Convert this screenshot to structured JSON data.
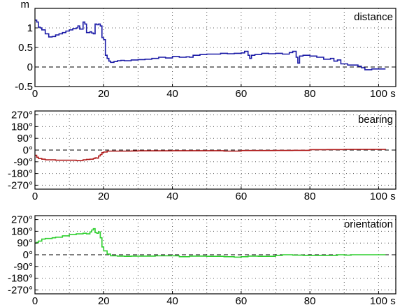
{
  "chart_data": [
    {
      "type": "line",
      "title": "distance",
      "ylabel": "m",
      "xlabel": "s",
      "xlim": [
        0,
        105
      ],
      "ylim": [
        -0.5,
        1.5
      ],
      "xticks": [
        0,
        20,
        40,
        60,
        80,
        100
      ],
      "xtick_labels": [
        "0",
        "20",
        "40",
        "60",
        "80",
        "100"
      ],
      "yticks": [
        -0.5,
        0,
        0.5,
        1
      ],
      "ytick_labels": [
        "-0.5",
        "0",
        "0.5",
        "1"
      ],
      "grid": true,
      "zero_line": "dashed",
      "color": "#1a1aa6",
      "series": [
        {
          "x": [
            0,
            0.5,
            1,
            1.5,
            2,
            3,
            4,
            5,
            6,
            7,
            8,
            9,
            10,
            11,
            12,
            12.5,
            13,
            14,
            14.5,
            15,
            16,
            16.5,
            17,
            17.5,
            18,
            18.5,
            19,
            19.5,
            20,
            20.5,
            21,
            21.5,
            22,
            23,
            24,
            25,
            26,
            28,
            30,
            32,
            34,
            36,
            38,
            40,
            42,
            44,
            45,
            46,
            48,
            50,
            52,
            54,
            56,
            58,
            60,
            61,
            62,
            62.5,
            63,
            64,
            66,
            68,
            70,
            72,
            74,
            75,
            76,
            76.5,
            77,
            78,
            80,
            82,
            84,
            86,
            87,
            88,
            89,
            90,
            91,
            92,
            93,
            94,
            95,
            96,
            98,
            100,
            102
          ],
          "y": [
            1.2,
            1.15,
            1.02,
            1.0,
            0.95,
            0.85,
            0.77,
            0.78,
            0.82,
            0.85,
            0.88,
            0.92,
            0.95,
            0.98,
            1.0,
            1.05,
            0.97,
            1.15,
            1.1,
            0.88,
            0.9,
            0.87,
            0.85,
            1.1,
            1.08,
            1.1,
            1.05,
            0.75,
            0.7,
            0.3,
            0.22,
            0.15,
            0.12,
            0.14,
            0.16,
            0.17,
            0.16,
            0.18,
            0.19,
            0.2,
            0.22,
            0.25,
            0.23,
            0.27,
            0.25,
            0.26,
            0.25,
            0.3,
            0.32,
            0.33,
            0.33,
            0.35,
            0.34,
            0.35,
            0.36,
            0.4,
            0.3,
            0.22,
            0.3,
            0.32,
            0.35,
            0.34,
            0.35,
            0.33,
            0.37,
            0.4,
            0.25,
            0.1,
            0.28,
            0.3,
            0.28,
            0.25,
            0.2,
            0.22,
            0.15,
            0.18,
            0.08,
            0.08,
            0.05,
            0.05,
            0.05,
            0.02,
            -0.02,
            -0.07,
            -0.05,
            -0.05,
            -0.05
          ]
        }
      ]
    },
    {
      "type": "line",
      "title": "bearing",
      "ylabel": "",
      "xlabel": "s",
      "xlim": [
        0,
        105
      ],
      "ylim": [
        -300,
        300
      ],
      "xticks": [
        0,
        20,
        40,
        60,
        80,
        100
      ],
      "xtick_labels": [
        "0",
        "20",
        "40",
        "60",
        "80",
        "100"
      ],
      "yticks": [
        270,
        180,
        90,
        0,
        -90,
        -180,
        -270
      ],
      "ytick_labels": [
        "270°",
        "180°",
        "90°",
        "0°",
        "-90°",
        "-180°",
        "-270°"
      ],
      "grid": true,
      "zero_line": "dashed",
      "color": "#b01c1c",
      "series": [
        {
          "x": [
            0,
            0.5,
            1,
            2,
            3,
            4,
            6,
            8,
            10,
            12,
            14,
            15,
            16,
            17,
            17.5,
            18,
            18.5,
            19,
            19.5,
            20,
            21,
            22,
            24,
            26,
            28,
            30,
            35,
            40,
            45,
            50,
            55,
            60,
            65,
            70,
            75,
            80,
            85,
            90,
            95,
            100,
            102
          ],
          "y": [
            -40,
            -55,
            -65,
            -70,
            -75,
            -75,
            -78,
            -78,
            -78,
            -80,
            -75,
            -72,
            -70,
            -65,
            -60,
            -62,
            -45,
            -35,
            -20,
            -15,
            -8,
            -8,
            -8,
            -8,
            -7,
            -6,
            -6,
            -5,
            -5,
            -5,
            -8,
            -4,
            -4,
            -3,
            -2,
            3,
            4,
            5,
            5,
            5,
            4
          ]
        }
      ]
    },
    {
      "type": "line",
      "title": "orientation",
      "ylabel": "",
      "xlabel": "s",
      "xlim": [
        0,
        105
      ],
      "ylim": [
        -300,
        300
      ],
      "xticks": [
        0,
        20,
        40,
        60,
        80,
        100
      ],
      "xtick_labels": [
        "0",
        "20",
        "40",
        "60",
        "80",
        "100"
      ],
      "yticks": [
        270,
        180,
        90,
        0,
        -90,
        -180,
        -270
      ],
      "ytick_labels": [
        "270°",
        "180°",
        "90°",
        "0°",
        "-90°",
        "-180°",
        "-270°"
      ],
      "grid": true,
      "zero_line": "dashed",
      "color": "#2fcf2f",
      "series": [
        {
          "x": [
            0,
            0.5,
            1,
            2,
            3,
            4,
            5,
            6,
            8,
            10,
            12,
            14,
            15,
            16,
            16.5,
            17,
            17.5,
            18,
            18.5,
            19,
            19.5,
            20,
            21,
            22,
            24,
            26,
            28,
            30,
            35,
            40,
            42,
            45,
            50,
            55,
            58,
            60,
            62,
            65,
            70,
            72,
            75,
            78,
            80,
            85,
            88,
            90,
            92,
            95,
            100,
            102
          ],
          "y": [
            90,
            95,
            105,
            120,
            125,
            125,
            130,
            135,
            145,
            155,
            160,
            165,
            160,
            175,
            190,
            200,
            170,
            165,
            175,
            130,
            60,
            30,
            5,
            -8,
            -10,
            -12,
            -10,
            -10,
            -8,
            -8,
            -15,
            -10,
            -12,
            -15,
            -18,
            -15,
            -10,
            -12,
            -5,
            0,
            -3,
            -5,
            -5,
            -5,
            0,
            -3,
            0,
            0,
            0,
            0
          ]
        }
      ]
    }
  ]
}
